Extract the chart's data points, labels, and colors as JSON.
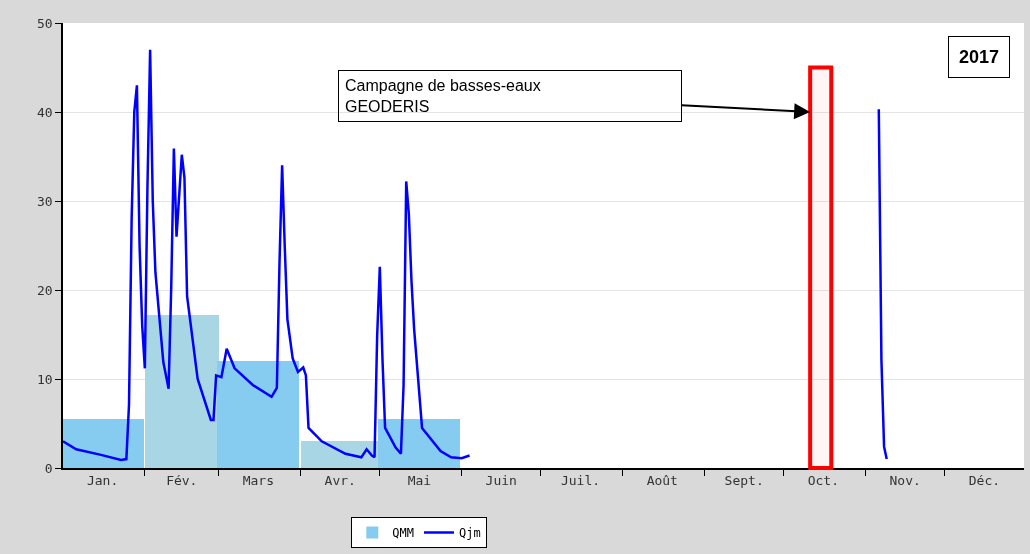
{
  "chart_data": {
    "type": "line",
    "title": "2017",
    "xlim": [
      "2017-01-01",
      "2017-12-31"
    ],
    "xticks": [
      {
        "value": "2017-01-16",
        "label": "Jan."
      },
      {
        "value": "2017-02-01",
        "label": null
      },
      {
        "value": "2017-02-15",
        "label": "Fév."
      },
      {
        "value": "2017-03-01",
        "label": null
      },
      {
        "value": "2017-03-16",
        "label": "Mars"
      },
      {
        "value": "2017-04-01",
        "label": null
      },
      {
        "value": "2017-04-16",
        "label": "Avr."
      },
      {
        "value": "2017-05-01",
        "label": null
      },
      {
        "value": "2017-05-16",
        "label": "Mai"
      },
      {
        "value": "2017-06-01",
        "label": null
      },
      {
        "value": "2017-06-16",
        "label": "Juin"
      },
      {
        "value": "2017-07-01",
        "label": null
      },
      {
        "value": "2017-07-16",
        "label": "Juil."
      },
      {
        "value": "2017-08-01",
        "label": null
      },
      {
        "value": "2017-08-16",
        "label": "Août"
      },
      {
        "value": "2017-09-01",
        "label": null
      },
      {
        "value": "2017-09-16",
        "label": "Sept."
      },
      {
        "value": "2017-10-01",
        "label": null
      },
      {
        "value": "2017-10-16",
        "label": "Oct."
      },
      {
        "value": "2017-11-01",
        "label": null
      },
      {
        "value": "2017-11-16",
        "label": "Nov."
      },
      {
        "value": "2017-12-01",
        "label": null
      },
      {
        "value": "2017-12-16",
        "label": "Déc."
      }
    ],
    "ylim": [
      0,
      50
    ],
    "yticks": [
      0,
      10,
      20,
      30,
      40,
      50
    ],
    "grid": "y",
    "legend": "bottom",
    "marker": "none",
    "series": [
      {
        "name": "QMM",
        "type": "bar",
        "x": [
          "2017-01-16",
          "2017-02-15",
          "2017-03-16",
          "2017-04-16",
          "2017-05-16"
        ],
        "values": [
          5.5,
          17.2,
          12.0,
          3.0,
          5.5
        ],
        "colors": [
          "#86ccf1",
          "#a8d6e4",
          "#86ccf1",
          "#a8d6e4",
          "#86ccf1"
        ]
      },
      {
        "name": "Qjm",
        "color": "#0000ff",
        "line_style": "solid",
        "x": [
          "2017-01-01",
          "2017-01-06",
          "2017-01-15",
          "2017-01-23",
          "2017-01-25",
          "2017-01-26",
          "2017-01-27",
          "2017-01-28",
          "2017-01-29",
          "2017-01-30",
          "2017-01-31",
          "2017-02-01",
          "2017-02-02",
          "2017-02-03",
          "2017-02-04",
          "2017-02-05",
          "2017-02-08",
          "2017-02-10",
          "2017-02-11",
          "2017-02-12",
          "2017-02-13",
          "2017-02-15",
          "2017-02-16",
          "2017-02-17",
          "2017-02-21",
          "2017-02-26",
          "2017-02-27",
          "2017-02-28",
          "2017-03-02",
          "2017-03-04",
          "2017-03-07",
          "2017-03-14",
          "2017-03-21",
          "2017-03-23",
          "2017-03-24",
          "2017-03-25",
          "2017-03-26",
          "2017-03-27",
          "2017-03-29",
          "2017-03-31",
          "2017-04-02",
          "2017-04-03",
          "2017-04-04",
          "2017-04-09",
          "2017-04-18",
          "2017-04-24",
          "2017-04-26",
          "2017-04-28",
          "2017-04-29",
          "2017-04-30",
          "2017-05-01",
          "2017-05-02",
          "2017-05-03",
          "2017-05-07",
          "2017-05-09",
          "2017-05-10",
          "2017-05-11",
          "2017-05-12",
          "2017-05-13",
          "2017-05-14",
          "2017-05-17",
          "2017-05-24",
          "2017-05-28",
          "2017-06-01",
          "2017-06-04",
          "2017-06-05",
          "2017-11-06",
          "2017-11-07",
          "2017-11-08",
          "2017-11-09"
        ],
        "values": [
          3.0,
          2.1,
          1.5,
          0.9,
          1.0,
          7.1,
          28,
          40,
          43,
          25,
          16,
          11.2,
          31.8,
          47,
          30,
          22,
          11.9,
          8.9,
          20.4,
          35.9,
          26,
          35.2,
          32.6,
          19.3,
          10,
          5.4,
          5.4,
          10.4,
          10.2,
          13.4,
          11.2,
          9.3,
          8.0,
          9,
          23,
          34,
          24.8,
          16.7,
          12.3,
          10.8,
          11.3,
          10.4,
          4.5,
          3.0,
          1.6,
          1.2,
          2.1,
          1.4,
          1.2,
          14.9,
          22.6,
          12.3,
          4.5,
          2.3,
          1.6,
          9.3,
          32.2,
          28.5,
          21,
          15.6,
          4.5,
          1.9,
          1.2,
          1.1,
          1.4,
          null,
          40.3,
          12.1,
          2.4,
          1.0
        ]
      }
    ],
    "bands": [
      {
        "axis": "x",
        "from": "2017-10-11",
        "to": "2017-10-19",
        "color": "#ff0000"
      }
    ],
    "annotations": [
      "Campagne de basses-eaux\nGEODERIS"
    ]
  }
}
